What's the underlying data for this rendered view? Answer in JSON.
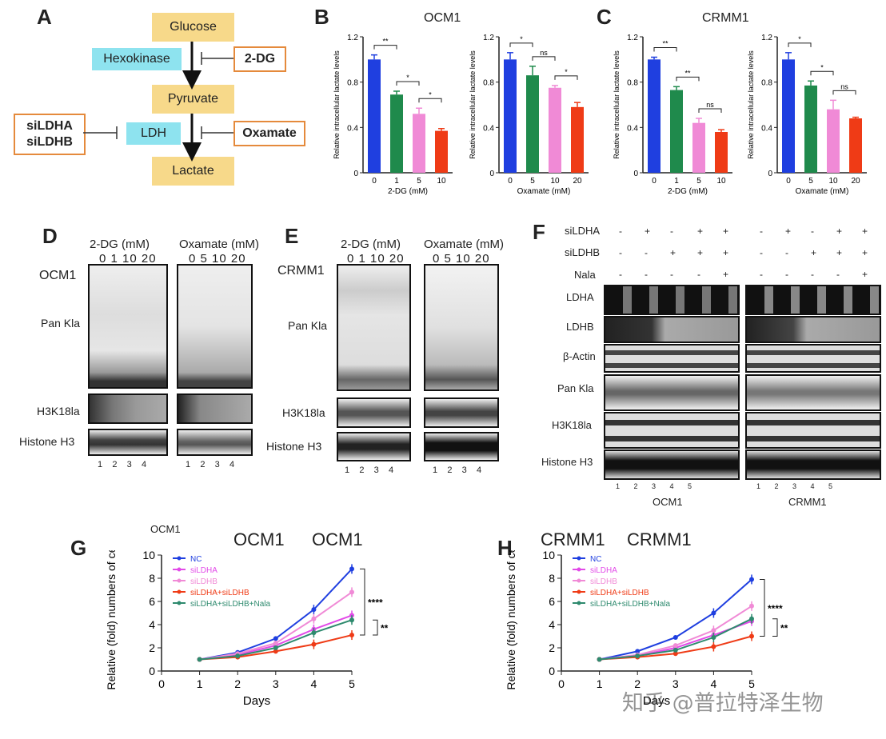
{
  "panel_labels": {
    "A": "A",
    "B": "B",
    "C": "C",
    "D": "D",
    "E": "E",
    "F": "F",
    "G": "G",
    "H": "H"
  },
  "pathway": {
    "glucose": "Glucose",
    "hexokinase": "Hexokinase",
    "inhibitor1": "2-DG",
    "pyruvate": "Pyruvate",
    "ldh": "LDH",
    "inhibitor2": "Oxamate",
    "silencer": "siLDHA\nsiLDHB",
    "lactate": "Lactate"
  },
  "titles": {
    "B": "OCM1",
    "C": "CRMM1"
  },
  "blots": {
    "D": {
      "cell": "OCM1",
      "header1": "2-DG (mM)",
      "header2": "Oxamate (mM)",
      "conc1": "0  1  10 20",
      "conc2": "0  5  10 20",
      "row1": "Pan Kla",
      "row2": "H3K18la",
      "row3": "Histone H3",
      "lanes": "1    2    3    4"
    },
    "E": {
      "cell": "CRMM1",
      "header1": "2-DG (mM)",
      "header2": "Oxamate (mM)",
      "conc1": "0  1  10 20",
      "conc2": "0  5  10 20",
      "row1": "Pan Kla",
      "row2": "H3K18la",
      "row3": "Histone H3",
      "lanes": "1    2    3    4"
    },
    "F": {
      "si1": "siLDHA",
      "si2": "siLDHB",
      "si3": "Nala",
      "row1": "LDHA",
      "row2": "LDHB",
      "row3": "β-Actin",
      "row4": "Pan Kla",
      "row5": "H3K18la",
      "row6": "Histone H3",
      "cell1": "OCM1",
      "cell2": "CRMM1",
      "lanes": "1       2       3       4       5",
      "signs": [
        [
          "-",
          "+",
          "-",
          "+",
          "+"
        ],
        [
          "-",
          "-",
          "+",
          "+",
          "+"
        ],
        [
          "-",
          "-",
          "-",
          "-",
          "+"
        ]
      ]
    }
  },
  "growth_titles": {
    "G_small": "OCM1",
    "G1": "OCM1",
    "G2": "OCM1",
    "H1": "CRMM1",
    "H2": "CRMM1"
  },
  "watermark": "知乎 @普拉特泽生物",
  "colors": {
    "blue": "#1f3fe0",
    "green": "#1f8a4c",
    "pink": "#f08ad6",
    "red": "#ef3b16",
    "magenta": "#e24ae8",
    "teal": "#2e8a6e"
  },
  "chart_data": [
    {
      "id": "B1",
      "type": "bar",
      "title": "OCM1",
      "xlabel": "2-DG (mM)",
      "ylabel": "Relative intracellular lactate levels",
      "categories": [
        "0",
        "1",
        "5",
        "10"
      ],
      "values": [
        1.0,
        0.69,
        0.52,
        0.37
      ],
      "errors": [
        0.04,
        0.03,
        0.05,
        0.02
      ],
      "ylim": [
        0,
        1.2
      ],
      "yticks": [
        "0",
        "0.4",
        "0.8",
        "1.2"
      ],
      "sig": [
        "**",
        "*",
        "*"
      ]
    },
    {
      "id": "B2",
      "type": "bar",
      "xlabel": "Oxamate (mM)",
      "ylabel": "Relative intracellular lactate levels",
      "categories": [
        "0",
        "5",
        "10",
        "20"
      ],
      "values": [
        1.0,
        0.86,
        0.75,
        0.58
      ],
      "errors": [
        0.06,
        0.08,
        0.02,
        0.04
      ],
      "ylim": [
        0,
        1.2
      ],
      "yticks": [
        "0",
        "0.4",
        "0.8",
        "1.2"
      ],
      "sig": [
        "*",
        "ns",
        "*"
      ]
    },
    {
      "id": "C1",
      "type": "bar",
      "title": "CRMM1",
      "xlabel": "2-DG (mM)",
      "ylabel": "Relative intracellular lactate levels",
      "categories": [
        "0",
        "1",
        "5",
        "10"
      ],
      "values": [
        1.0,
        0.73,
        0.44,
        0.36
      ],
      "errors": [
        0.02,
        0.03,
        0.04,
        0.02
      ],
      "ylim": [
        0,
        1.2
      ],
      "yticks": [
        "0",
        "0.4",
        "0.8",
        "1.2"
      ],
      "sig": [
        "**",
        "**",
        "ns"
      ]
    },
    {
      "id": "C2",
      "type": "bar",
      "xlabel": "Oxamate (mM)",
      "ylabel": "Relative intracellular lactate levels",
      "categories": [
        "0",
        "5",
        "10",
        "20"
      ],
      "values": [
        1.0,
        0.77,
        0.56,
        0.48
      ],
      "errors": [
        0.06,
        0.04,
        0.08,
        0.01
      ],
      "ylim": [
        0,
        1.2
      ],
      "yticks": [
        "0",
        "0.4",
        "0.8",
        "1.2"
      ],
      "sig": [
        "*",
        "*",
        "ns"
      ]
    },
    {
      "id": "G",
      "type": "line",
      "xlabel": "Days",
      "ylabel": "Relative (fold) numbers of cells",
      "x": [
        1,
        2,
        3,
        4,
        5
      ],
      "xlim": [
        0,
        5
      ],
      "ylim": [
        0,
        10
      ],
      "xticks": [
        "0",
        "1",
        "2",
        "3",
        "4",
        "5"
      ],
      "yticks": [
        "0",
        "2",
        "4",
        "6",
        "8",
        "10"
      ],
      "series": [
        {
          "name": "NC",
          "values": [
            1,
            1.6,
            2.8,
            5.3,
            8.8
          ]
        },
        {
          "name": "siLDHA",
          "values": [
            1,
            1.4,
            2.2,
            3.6,
            4.8
          ]
        },
        {
          "name": "siLDHB",
          "values": [
            1,
            1.5,
            2.4,
            4.5,
            6.8
          ]
        },
        {
          "name": "siLDHA+siLDHB",
          "values": [
            1,
            1.2,
            1.7,
            2.3,
            3.1
          ]
        },
        {
          "name": "siLDHA+siLDHB+Nala",
          "values": [
            1,
            1.3,
            2.0,
            3.3,
            4.4
          ]
        }
      ],
      "sig": [
        "****",
        "**"
      ]
    },
    {
      "id": "H",
      "type": "line",
      "xlabel": "Days",
      "ylabel": "Relative (fold) numbers of cells",
      "x": [
        1,
        2,
        3,
        4,
        5
      ],
      "xlim": [
        0,
        5
      ],
      "ylim": [
        0,
        10
      ],
      "xticks": [
        "0",
        "1",
        "2",
        "3",
        "4",
        "5"
      ],
      "yticks": [
        "0",
        "2",
        "4",
        "6",
        "8",
        "10"
      ],
      "series": [
        {
          "name": "NC",
          "values": [
            1,
            1.7,
            2.9,
            5.0,
            7.9
          ]
        },
        {
          "name": "siLDHA",
          "values": [
            1,
            1.3,
            2.0,
            3.1,
            4.3
          ]
        },
        {
          "name": "siLDHB",
          "values": [
            1,
            1.4,
            2.2,
            3.5,
            5.6
          ]
        },
        {
          "name": "siLDHA+siLDHB",
          "values": [
            1,
            1.2,
            1.5,
            2.1,
            3.0
          ]
        },
        {
          "name": "siLDHA+siLDHB+Nala",
          "values": [
            1,
            1.3,
            1.8,
            2.9,
            4.5
          ]
        }
      ],
      "sig": [
        "****",
        "**"
      ]
    }
  ]
}
